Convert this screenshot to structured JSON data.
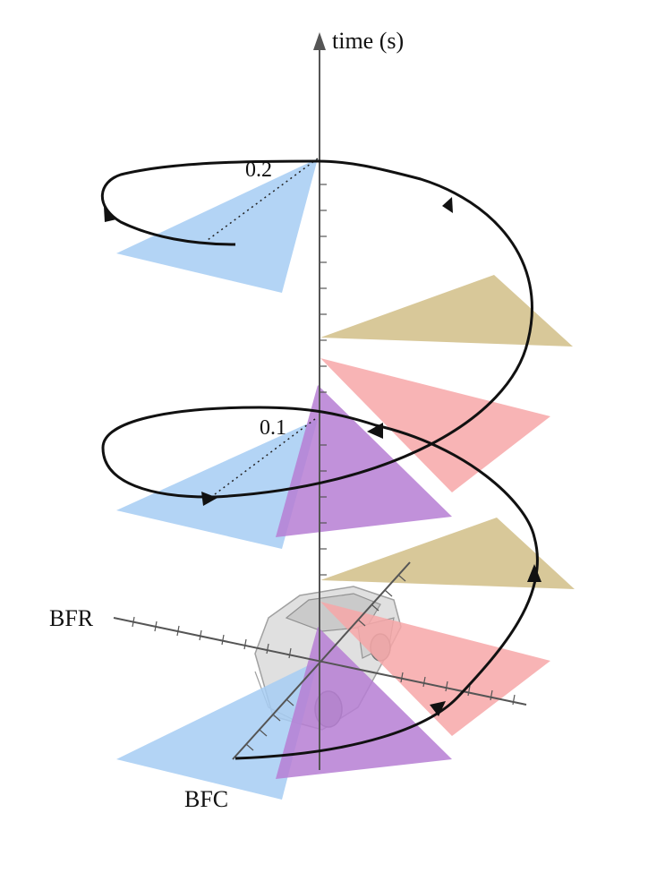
{
  "labels": {
    "time_axis": "time (s)",
    "tick_02": "0.2",
    "tick_01": "0.1",
    "bfr": "BFR",
    "bfc": "BFC"
  },
  "colors": {
    "blue": "#a6cdf3",
    "red": "#f7a7a8",
    "tan": "#d6c594",
    "purple": "#b67ed3",
    "spiral": "#111111",
    "axis": "#555555"
  }
}
